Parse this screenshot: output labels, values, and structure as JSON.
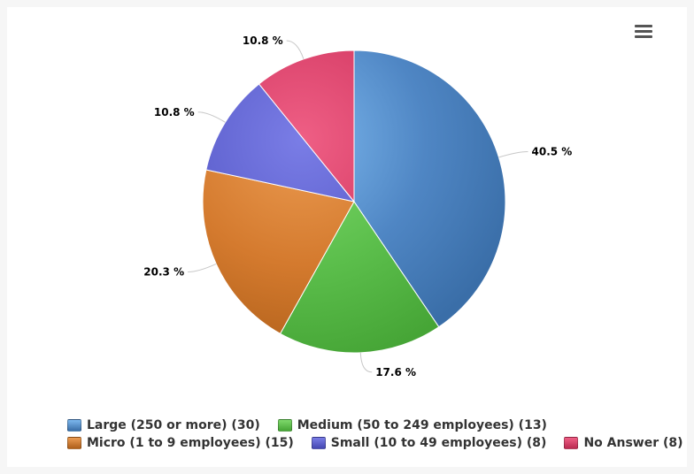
{
  "chart_data": {
    "type": "pie",
    "title": "",
    "slices": [
      {
        "name": "Large (250 or more)",
        "count": 30,
        "percent": 40.5,
        "label": "40.5 %",
        "legend": "Large (250 or more) (30)",
        "color": "#4f86c4",
        "color_light": "#7db8ee",
        "color_dark": "#3a6ea8"
      },
      {
        "name": "Medium (50 to 249 employees)",
        "count": 13,
        "percent": 17.6,
        "label": "17.6 %",
        "legend": "Medium (50 to 249 employees) (13)",
        "color": "#5cbf4c",
        "color_light": "#7fd96c",
        "color_dark": "#46a536"
      },
      {
        "name": "Micro (1 to 9 employees)",
        "count": 15,
        "percent": 20.3,
        "label": "20.3 %",
        "legend": "Micro (1 to 9 employees) (15)",
        "color": "#d47a2e",
        "color_light": "#ec9c52",
        "color_dark": "#b0601a"
      },
      {
        "name": "Small (10 to 49 employees)",
        "count": 8,
        "percent": 10.8,
        "label": "10.8 %",
        "legend": "Small (10 to 49 employees) (8)",
        "color": "#5c5fcc",
        "color_light": "#7a7de6",
        "color_dark": "#4548b2"
      },
      {
        "name": "No Answer",
        "count": 8,
        "percent": 10.8,
        "label": "10.8 %",
        "legend": "No Answer (8)",
        "color": "#d63d66",
        "color_light": "#ef5f85",
        "color_dark": "#bb2b52"
      }
    ],
    "start_angle": 0,
    "direction": "clockwise",
    "legend_position": "bottom-left"
  },
  "toolbar": {
    "menu_icon": "hamburger-menu-icon"
  }
}
